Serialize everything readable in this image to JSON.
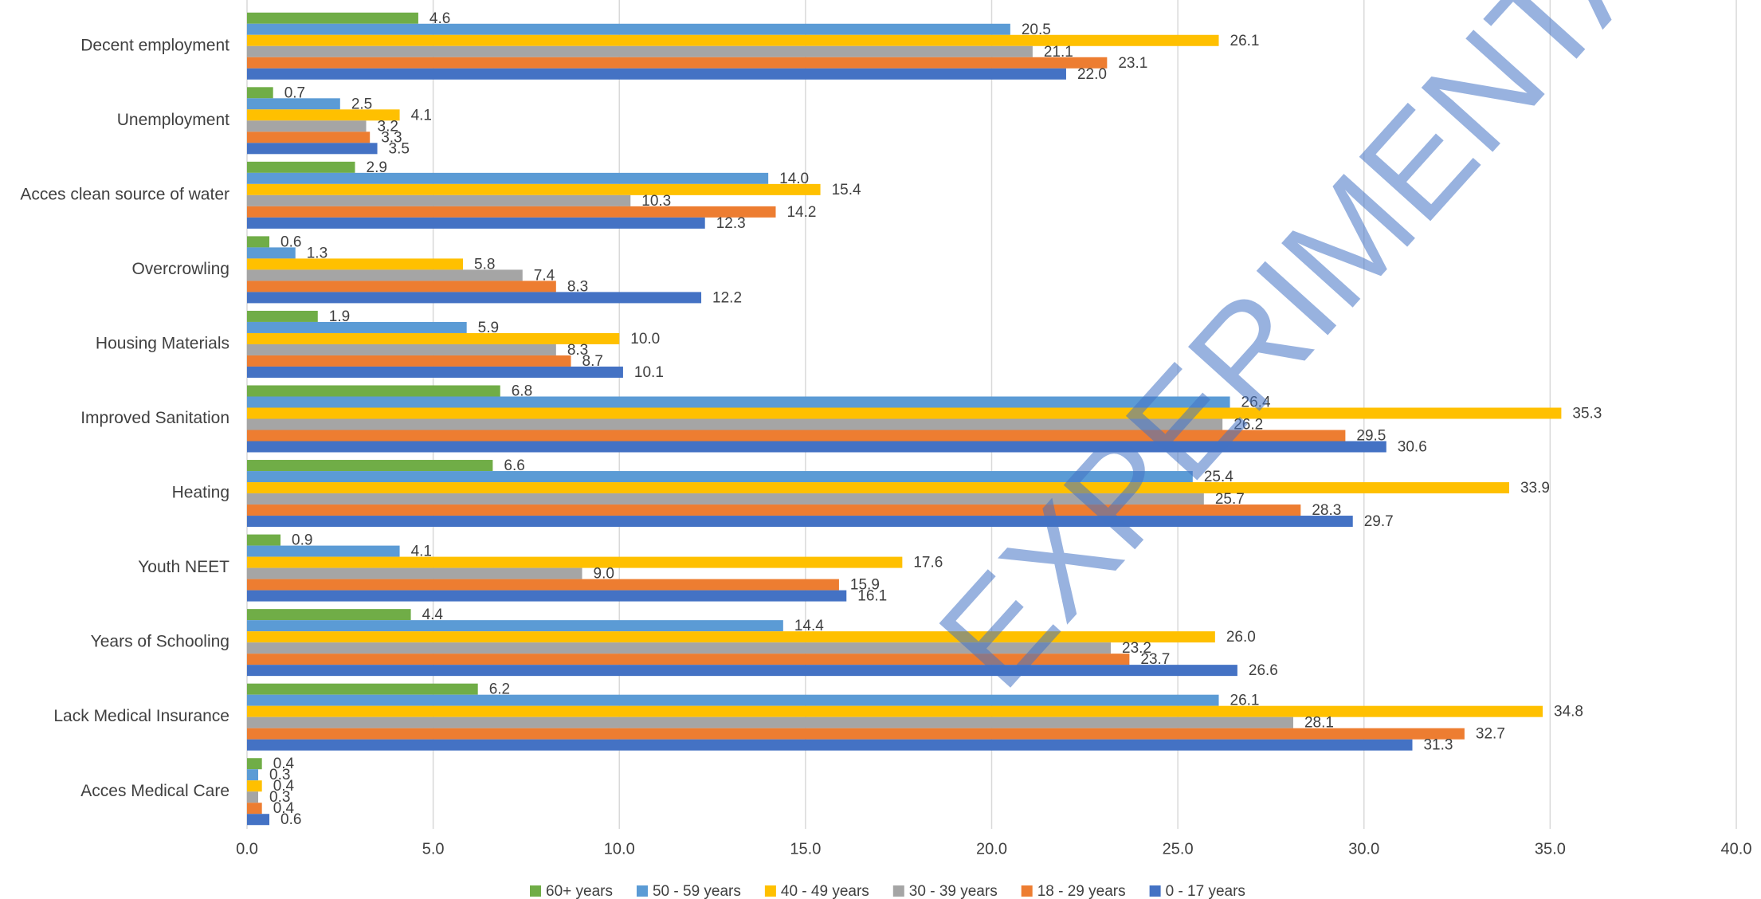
{
  "chart_data": {
    "type": "hbar",
    "annotation": "EXPERIMENTAL",
    "categories": [
      "Decent employment",
      "Unemployment",
      "Acces clean source of water",
      "Overcrowling",
      "Housing Materials",
      "Improved Sanitation",
      "Heating",
      "Youth NEET",
      "Years of Schooling",
      "Lack Medical Insurance",
      "Acces Medical Care"
    ],
    "series": [
      {
        "name": "60+ years",
        "color": "#70ad47",
        "values": [
          4.6,
          0.7,
          2.9,
          0.6,
          1.9,
          6.8,
          6.6,
          0.9,
          4.4,
          6.2,
          0.4
        ],
        "value_labels": [
          "4.6",
          "0.7",
          "2.9",
          "0.6",
          "1.9",
          "6.8",
          "6.6",
          "0.9",
          "4.4",
          "6.2",
          "0.4"
        ]
      },
      {
        "name": "50 - 59 years",
        "color": "#5b9bd5",
        "values": [
          20.5,
          2.5,
          14.0,
          1.3,
          5.9,
          26.4,
          25.4,
          4.1,
          14.4,
          26.1,
          0.3
        ],
        "value_labels": [
          "20.5",
          "2.5",
          "14.0",
          "1.3",
          "5.9",
          "26.4",
          "25.4",
          "4.1",
          "14.4",
          "26.1",
          "0.3"
        ]
      },
      {
        "name": "40 - 49 years",
        "color": "#ffc000",
        "values": [
          26.1,
          4.1,
          15.4,
          5.8,
          10.0,
          35.3,
          33.9,
          17.6,
          26.0,
          34.8,
          0.4
        ],
        "value_labels": [
          "26.1",
          "4.1",
          "15.4",
          "5.8",
          "10.0",
          "35.3",
          "33.9",
          "17.6",
          "26.0",
          "34.8",
          "0.4"
        ]
      },
      {
        "name": "30 - 39 years",
        "color": "#a5a5a5",
        "values": [
          21.1,
          3.2,
          10.3,
          7.4,
          8.3,
          26.2,
          25.7,
          9.0,
          23.2,
          28.1,
          0.3
        ],
        "value_labels": [
          "21.1",
          "3.2",
          "10.3",
          "7.4",
          "8.3",
          "26.2",
          "25.7",
          "9.0",
          "23.2",
          "28.1",
          "0.3"
        ]
      },
      {
        "name": "18 - 29 years",
        "color": "#ed7d31",
        "values": [
          23.1,
          3.3,
          14.2,
          8.3,
          8.7,
          29.5,
          28.3,
          15.9,
          23.7,
          32.7,
          0.4
        ],
        "value_labels": [
          "23.1",
          "3.3",
          "14.2",
          "8.3",
          "8.7",
          "29.5",
          "28.3",
          "15.9",
          "23.7",
          "32.7",
          "0.4"
        ]
      },
      {
        "name": "0 - 17 years",
        "color": "#4472c4",
        "values": [
          22.0,
          3.5,
          12.3,
          12.2,
          10.1,
          30.6,
          29.7,
          16.1,
          26.6,
          31.3,
          0.6
        ],
        "value_labels": [
          "22.0",
          "3.5",
          "12.3",
          "12.2",
          "10.1",
          "30.6",
          "29.7",
          "16.1",
          "26.6",
          "31.3",
          "0.6"
        ]
      }
    ],
    "xlim": [
      0,
      40
    ],
    "xticks": [
      {
        "value": 0,
        "label": "0.0"
      },
      {
        "value": 5,
        "label": "5.0"
      },
      {
        "value": 10,
        "label": "10.0"
      },
      {
        "value": 15,
        "label": "15.0"
      },
      {
        "value": 20,
        "label": "20.0"
      },
      {
        "value": 25,
        "label": "25.0"
      },
      {
        "value": 30,
        "label": "30.0"
      },
      {
        "value": 35,
        "label": "35.0"
      },
      {
        "value": 40,
        "label": "40.0"
      }
    ],
    "grid": true,
    "legend": "bottom"
  }
}
